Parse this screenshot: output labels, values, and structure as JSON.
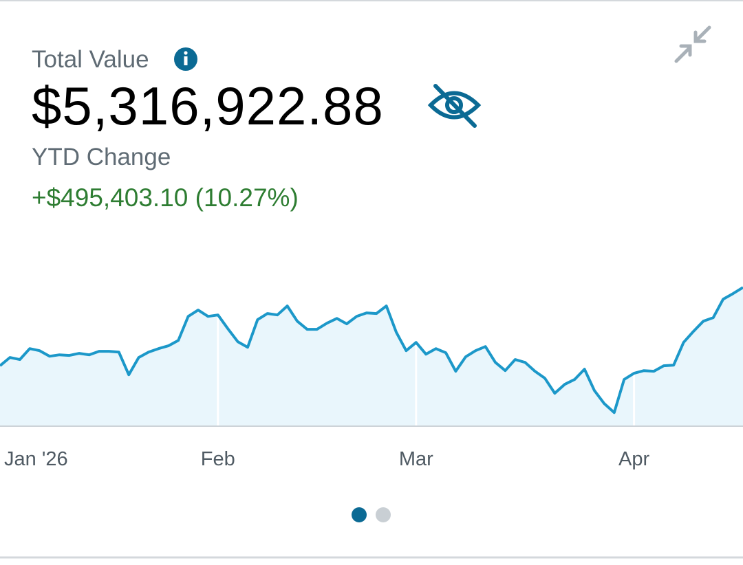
{
  "header": {
    "title": "Total Value",
    "value": "$5,316,922.88",
    "change_label": "YTD Change",
    "change": "+$495,403.10 (10.27%)"
  },
  "chart_data": {
    "type": "line",
    "fill": true,
    "xgrid": true,
    "color": "#1c98c9",
    "fill_color": "#e9f6fc",
    "categories": [
      "Jan '26",
      null,
      null,
      null,
      null,
      null,
      null,
      null,
      null,
      null,
      null,
      null,
      null,
      null,
      null,
      null,
      null,
      null,
      null,
      null,
      null,
      null,
      "Feb",
      null,
      null,
      null,
      null,
      null,
      null,
      null,
      null,
      null,
      null,
      null,
      null,
      null,
      null,
      null,
      null,
      null,
      null,
      null,
      "Mar",
      null,
      null,
      null,
      null,
      null,
      null,
      null,
      null,
      null,
      null,
      null,
      null,
      null,
      null,
      null,
      null,
      null,
      null,
      null,
      null,
      null,
      "Apr",
      null,
      null,
      null,
      null,
      null,
      null,
      null,
      null,
      null,
      null,
      null
    ],
    "values": [
      4822000,
      4874000,
      4861000,
      4930000,
      4917000,
      4882000,
      4891000,
      4887000,
      4900000,
      4891000,
      4913000,
      4913000,
      4908000,
      4765000,
      4874000,
      4908000,
      4930000,
      4948000,
      4982000,
      5134000,
      5174000,
      5134000,
      5143000,
      5056000,
      4974000,
      4939000,
      5113000,
      5152000,
      5143000,
      5200000,
      5104000,
      5052000,
      5052000,
      5091000,
      5121000,
      5087000,
      5134000,
      5156000,
      5152000,
      5200000,
      5034000,
      4917000,
      4969000,
      4895000,
      4930000,
      4904000,
      4787000,
      4878000,
      4917000,
      4943000,
      4843000,
      4791000,
      4861000,
      4843000,
      4787000,
      4743000,
      4648000,
      4704000,
      4735000,
      4800000,
      4665000,
      4582000,
      4526000,
      4735000,
      4774000,
      4791000,
      4787000,
      4822000,
      4826000,
      4969000,
      5039000,
      5104000,
      5126000,
      5243000,
      5278000,
      5317000
    ],
    "ylim": [
      4440000,
      5700000
    ]
  }
}
